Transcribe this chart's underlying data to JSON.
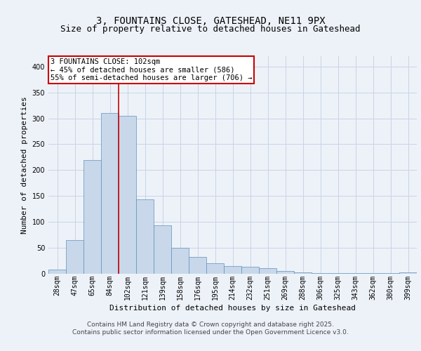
{
  "title": "3, FOUNTAINS CLOSE, GATESHEAD, NE11 9PX",
  "subtitle": "Size of property relative to detached houses in Gateshead",
  "xlabel": "Distribution of detached houses by size in Gateshead",
  "ylabel": "Number of detached properties",
  "categories": [
    "28sqm",
    "47sqm",
    "65sqm",
    "84sqm",
    "102sqm",
    "121sqm",
    "139sqm",
    "158sqm",
    "176sqm",
    "195sqm",
    "214sqm",
    "232sqm",
    "251sqm",
    "269sqm",
    "288sqm",
    "306sqm",
    "325sqm",
    "343sqm",
    "362sqm",
    "380sqm",
    "399sqm"
  ],
  "values": [
    8,
    65,
    220,
    310,
    305,
    143,
    93,
    50,
    32,
    20,
    15,
    13,
    11,
    5,
    3,
    2,
    2,
    1,
    1,
    1,
    3
  ],
  "bar_color": "#c8d8ea",
  "bar_edge_color": "#6090bb",
  "grid_color": "#c8d4e4",
  "background_color": "#edf2f9",
  "vline_x_index": 4,
  "vline_color": "#cc0000",
  "annotation_line1": "3 FOUNTAINS CLOSE: 102sqm",
  "annotation_line2": "← 45% of detached houses are smaller (586)",
  "annotation_line3": "55% of semi-detached houses are larger (706) →",
  "annotation_box_color": "#cc0000",
  "ylim": [
    0,
    420
  ],
  "yticks": [
    0,
    50,
    100,
    150,
    200,
    250,
    300,
    350,
    400
  ],
  "footer_line1": "Contains HM Land Registry data © Crown copyright and database right 2025.",
  "footer_line2": "Contains public sector information licensed under the Open Government Licence v3.0.",
  "title_fontsize": 10,
  "subtitle_fontsize": 9,
  "axis_label_fontsize": 8,
  "tick_fontsize": 7,
  "annotation_fontsize": 7.5,
  "footer_fontsize": 6.5
}
